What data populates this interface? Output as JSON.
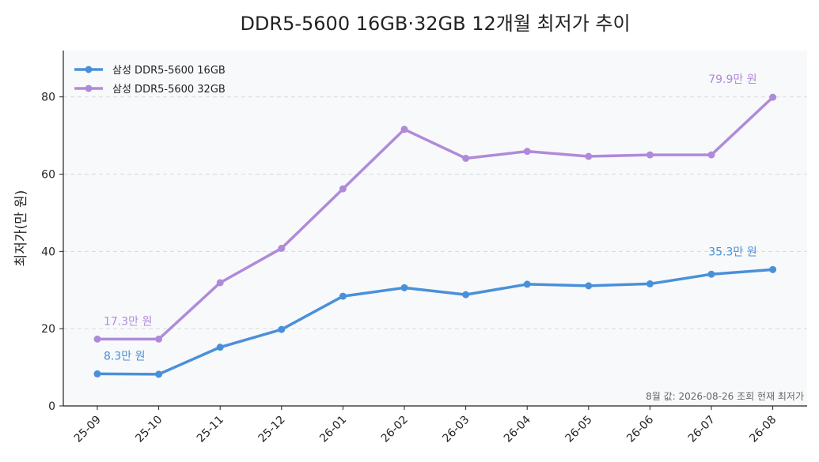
{
  "chart_data": {
    "type": "line",
    "title": "DDR5-5600 16GB·32GB 12개월 최저가 추이",
    "xlabel": "",
    "ylabel": "최저가(만 원)",
    "categories": [
      "25-09",
      "25-10",
      "25-11",
      "25-12",
      "26-01",
      "26-02",
      "26-03",
      "26-04",
      "26-05",
      "26-06",
      "26-07",
      "26-08"
    ],
    "ylim": [
      0,
      92
    ],
    "yticks": [
      "0",
      "20",
      "40",
      "60",
      "80"
    ],
    "grid": "horizontal dashed",
    "legend_position": "top-left",
    "series": [
      {
        "name": "삼성 DDR5-5600 16GB",
        "color": "#4A90D9",
        "values": [
          8.3,
          8.2,
          15.2,
          19.8,
          28.4,
          30.6,
          28.8,
          31.5,
          31.1,
          31.6,
          34.1,
          35.3
        ]
      },
      {
        "name": "삼성 DDR5-5600 32GB",
        "color": "#B08ADA",
        "values": [
          17.3,
          17.3,
          31.9,
          40.8,
          56.2,
          71.6,
          64.1,
          65.9,
          64.6,
          65.0,
          65.0,
          79.9
        ]
      }
    ],
    "annotations": [
      {
        "text": "17.3만 원",
        "series": 1,
        "index": 0,
        "color": "#B08ADA"
      },
      {
        "text": "8.3만 원",
        "series": 0,
        "index": 0,
        "color": "#4A90D9"
      },
      {
        "text": "79.9만 원",
        "series": 1,
        "index": 11,
        "color": "#B08ADA"
      },
      {
        "text": "35.3만 원",
        "series": 0,
        "index": 11,
        "color": "#4A90D9"
      }
    ],
    "note": "8월 값: 2026-08-26 조회 현재 최저가"
  }
}
